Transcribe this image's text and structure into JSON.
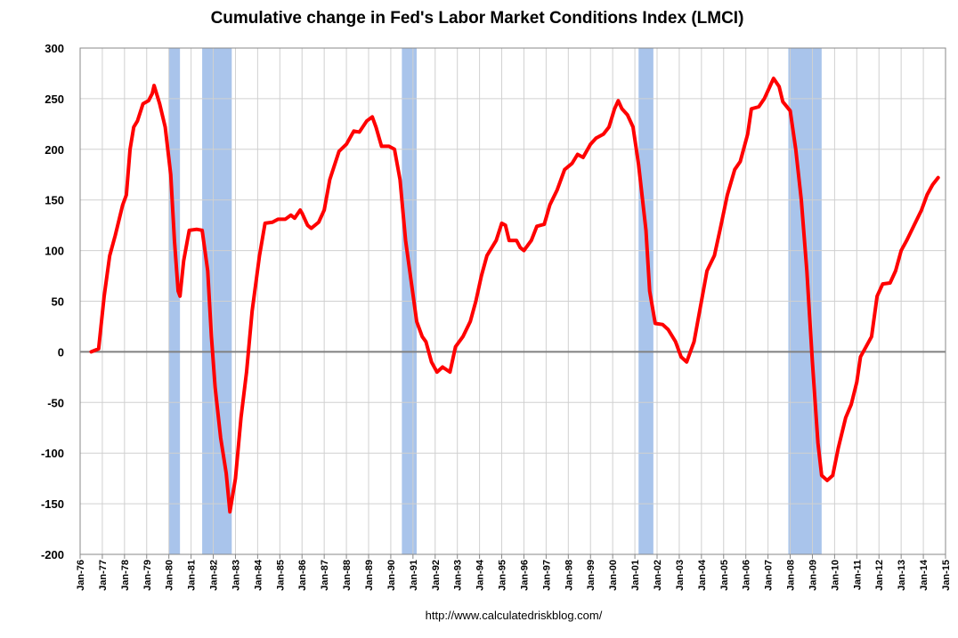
{
  "chart_data": {
    "type": "line",
    "title": "Cumulative change in Fed's Labor Market Conditions Index (LMCI)",
    "source": "http://www.calculatedriskblog.com/",
    "xlim": [
      "Jan-76",
      "Jan-15"
    ],
    "xticks": [
      "Jan-76",
      "Jan-77",
      "Jan-78",
      "Jan-79",
      "Jan-80",
      "Jan-81",
      "Jan-82",
      "Jan-83",
      "Jan-84",
      "Jan-85",
      "Jan-86",
      "Jan-87",
      "Jan-88",
      "Jan-89",
      "Jan-90",
      "Jan-91",
      "Jan-92",
      "Jan-93",
      "Jan-94",
      "Jan-95",
      "Jan-96",
      "Jan-97",
      "Jan-98",
      "Jan-99",
      "Jan-00",
      "Jan-01",
      "Jan-02",
      "Jan-03",
      "Jan-04",
      "Jan-05",
      "Jan-06",
      "Jan-07",
      "Jan-08",
      "Jan-09",
      "Jan-10",
      "Jan-11",
      "Jan-12",
      "Jan-13",
      "Jan-14",
      "Jan-15"
    ],
    "ylim": [
      -200,
      300
    ],
    "yticks": [
      -200,
      -150,
      -100,
      -50,
      0,
      50,
      100,
      150,
      200,
      250,
      300
    ],
    "grid": true,
    "recession_color": "#a9c4eb",
    "recessions": [
      {
        "start": "Jan-80",
        "end": "Jul-80"
      },
      {
        "start": "Jul-81",
        "end": "Nov-82"
      },
      {
        "start": "Jul-90",
        "end": "Mar-91"
      },
      {
        "start": "Mar-01",
        "end": "Nov-01"
      },
      {
        "start": "Dec-07",
        "end": "Jun-09"
      }
    ],
    "x": [
      "Jul-76",
      "Nov-76",
      "Feb-77",
      "May-77",
      "Aug-77",
      "Dec-77",
      "Feb-78",
      "Apr-78",
      "Jun-78",
      "Aug-78",
      "Nov-78",
      "Feb-79",
      "Apr-79",
      "May-79",
      "Aug-79",
      "Nov-79",
      "Feb-80",
      "Apr-80",
      "Jun-80",
      "Jul-80",
      "Sep-80",
      "Dec-80",
      "Apr-81",
      "Jul-81",
      "Oct-81",
      "Dec-81",
      "Feb-82",
      "May-82",
      "Aug-82",
      "Oct-82",
      "Jan-83",
      "Apr-83",
      "Jul-83",
      "Oct-83",
      "Feb-84",
      "May-84",
      "Sep-84",
      "Dec-84",
      "Apr-85",
      "Jul-85",
      "Sep-85",
      "Dec-85",
      "Jan-86",
      "Apr-86",
      "Jun-86",
      "Oct-86",
      "Jan-87",
      "Apr-87",
      "Sep-87",
      "Jan-88",
      "May-88",
      "Aug-88",
      "Dec-88",
      "Mar-89",
      "May-89",
      "Aug-89",
      "Dec-89",
      "Mar-90",
      "Jun-90",
      "Sep-90",
      "Dec-90",
      "Mar-91",
      "Jun-91",
      "Aug-91",
      "Nov-91",
      "Feb-92",
      "May-92",
      "Sep-92",
      "Dec-92",
      "Apr-93",
      "Aug-93",
      "Nov-93",
      "Feb-94",
      "May-94",
      "Oct-94",
      "Jan-95",
      "Mar-95",
      "May-95",
      "Sep-95",
      "Nov-95",
      "Jan-96",
      "May-96",
      "Aug-96",
      "Dec-96",
      "Mar-97",
      "Jul-97",
      "Nov-97",
      "Mar-98",
      "Jun-98",
      "Sep-98",
      "Jan-99",
      "Apr-99",
      "Aug-99",
      "Nov-99",
      "Feb-00",
      "Apr-00",
      "Jun-00",
      "Sep-00",
      "Dec-00",
      "Mar-01",
      "Jul-01",
      "Sep-01",
      "Dec-01",
      "Apr-02",
      "Jul-02",
      "Nov-02",
      "Feb-03",
      "May-03",
      "Sep-03",
      "Dec-03",
      "Apr-04",
      "Aug-04",
      "Nov-04",
      "Mar-05",
      "Jul-05",
      "Oct-05",
      "Feb-06",
      "Apr-06",
      "Aug-06",
      "Nov-06",
      "Feb-07",
      "Apr-07",
      "Jul-07",
      "Sep-07",
      "Jan-08",
      "Apr-08",
      "Jul-08",
      "Oct-08",
      "Jan-09",
      "Apr-09",
      "Jun-09",
      "Sep-09",
      "Dec-09",
      "Mar-10",
      "Jul-10",
      "Oct-10",
      "Jan-11",
      "Mar-11",
      "Jun-11",
      "Sep-11",
      "Dec-11",
      "Mar-12",
      "Jul-12",
      "Oct-12",
      "Jan-13",
      "Apr-13",
      "Aug-13",
      "Dec-13",
      "Mar-14",
      "Jun-14",
      "Sep-14"
    ],
    "series": [
      {
        "color": "#ff0000",
        "values": [
          0,
          3,
          55,
          95,
          115,
          145,
          155,
          200,
          222,
          228,
          245,
          248,
          255,
          263,
          245,
          222,
          175,
          110,
          60,
          55,
          90,
          120,
          121,
          120,
          80,
          15,
          -35,
          -85,
          -120,
          -158,
          -125,
          -65,
          -20,
          40,
          95,
          127,
          128,
          131,
          131,
          135,
          132,
          140,
          137,
          125,
          122,
          128,
          140,
          170,
          198,
          205,
          218,
          217,
          228,
          232,
          222,
          203,
          203,
          200,
          170,
          110,
          70,
          30,
          15,
          10,
          -10,
          -20,
          -15,
          -20,
          5,
          15,
          30,
          50,
          75,
          95,
          110,
          127,
          125,
          110,
          110,
          103,
          100,
          110,
          124,
          126,
          145,
          160,
          180,
          186,
          195,
          192,
          205,
          211,
          215,
          222,
          240,
          248,
          240,
          234,
          222,
          185,
          120,
          60,
          28,
          27,
          22,
          10,
          -5,
          -10,
          10,
          40,
          80,
          95,
          120,
          155,
          180,
          188,
          215,
          240,
          242,
          250,
          262,
          270,
          262,
          247,
          238,
          200,
          150,
          80,
          -10,
          -90,
          -122,
          -127,
          -122,
          -95,
          -65,
          -52,
          -30,
          -5,
          5,
          15,
          55,
          67,
          68,
          80,
          100,
          110,
          125,
          140,
          155,
          165,
          172
        ]
      }
    ]
  }
}
